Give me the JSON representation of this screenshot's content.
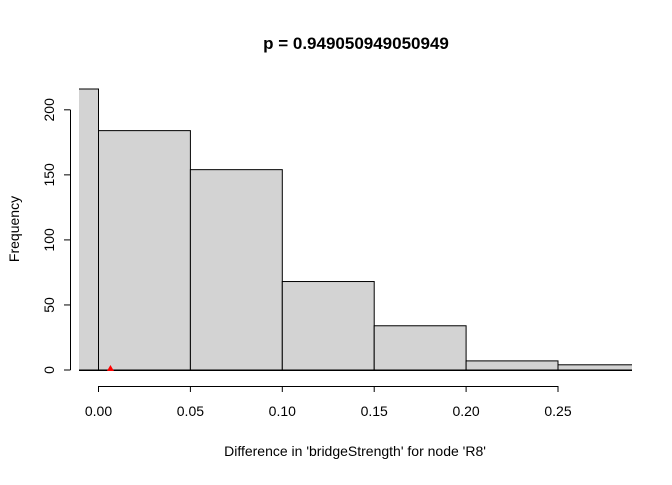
{
  "chart_data": {
    "type": "bar",
    "title": "p = 0.949050949050949",
    "xlabel": "Difference in 'bridgeStrength' for node 'R8'",
    "ylabel": "Frequency",
    "bins": [
      {
        "start": -0.05,
        "end": 0.0,
        "count": 216
      },
      {
        "start": 0.0,
        "end": 0.05,
        "count": 184
      },
      {
        "start": 0.05,
        "end": 0.1,
        "count": 154
      },
      {
        "start": 0.1,
        "end": 0.15,
        "count": 68
      },
      {
        "start": 0.15,
        "end": 0.2,
        "count": 34
      },
      {
        "start": 0.2,
        "end": 0.25,
        "count": 7
      },
      {
        "start": 0.25,
        "end": 0.3,
        "count": 4
      }
    ],
    "x_ticks": [
      "0.00",
      "0.05",
      "0.10",
      "0.15",
      "0.20",
      "0.25"
    ],
    "y_ticks": [
      "0",
      "50",
      "100",
      "150",
      "200"
    ],
    "xlim": [
      -0.05,
      0.3
    ],
    "ylim": [
      0,
      216
    ],
    "observed_marker": {
      "x": 0.0065,
      "y": 0,
      "shape": "triangle"
    },
    "colors": {
      "bar_fill": "#d3d3d3",
      "bar_stroke": "#000000",
      "marker": "#ff0000"
    },
    "grid": false,
    "legend": "none"
  }
}
